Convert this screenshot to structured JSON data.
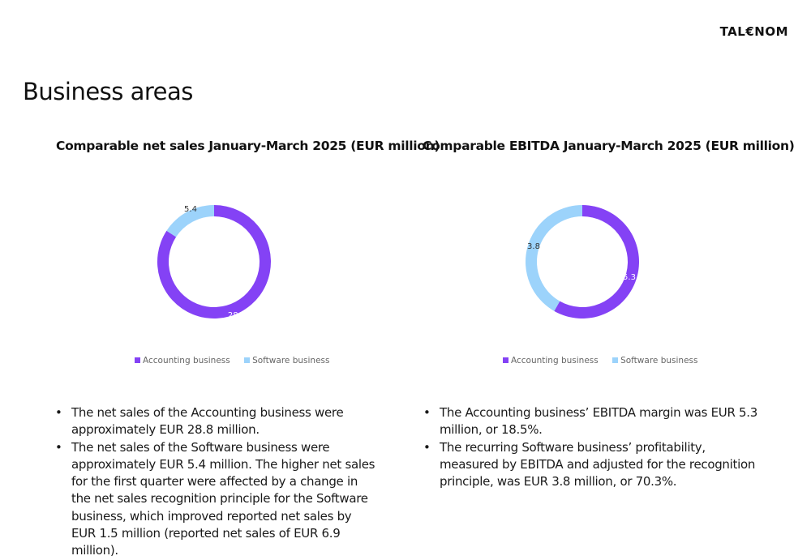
{
  "brand": "TAL€NOM",
  "page_title": "Business areas",
  "colors": {
    "accounting": "#8442F5",
    "software": "#9CD3FB"
  },
  "chart_data": [
    {
      "type": "pie",
      "donut": true,
      "title": "Comparable net sales January-March 2025 (EUR million)",
      "categories": [
        "Accounting business",
        "Software business"
      ],
      "values": [
        28.8,
        5.4
      ],
      "data_labels": [
        "28.8",
        "5.4"
      ],
      "legend": "bottom"
    },
    {
      "type": "pie",
      "donut": true,
      "title": "Comparable EBITDA January-March 2025 (EUR million)",
      "categories": [
        "Accounting business",
        "Software business"
      ],
      "values": [
        5.3,
        3.8
      ],
      "data_labels": [
        "5.3",
        "3.8"
      ],
      "legend": "bottom"
    }
  ],
  "bullets_left": [
    "The net sales of the Accounting business were approximately EUR 28.8 million.",
    "The net sales of the Software business were approximately EUR 5.4 million. The higher net sales for the first quarter were affected by a change in the net sales recognition principle for the Software business, which improved reported net sales by EUR 1.5 million (reported net sales of EUR 6.9 million)."
  ],
  "bullets_right": [
    "The Accounting business’ EBITDA margin was EUR 5.3 million, or 18.5%.",
    "The recurring Software business’ profitability, measured by EBITDA and adjusted for the recognition principle, was EUR 3.8 million, or 70.3%."
  ]
}
